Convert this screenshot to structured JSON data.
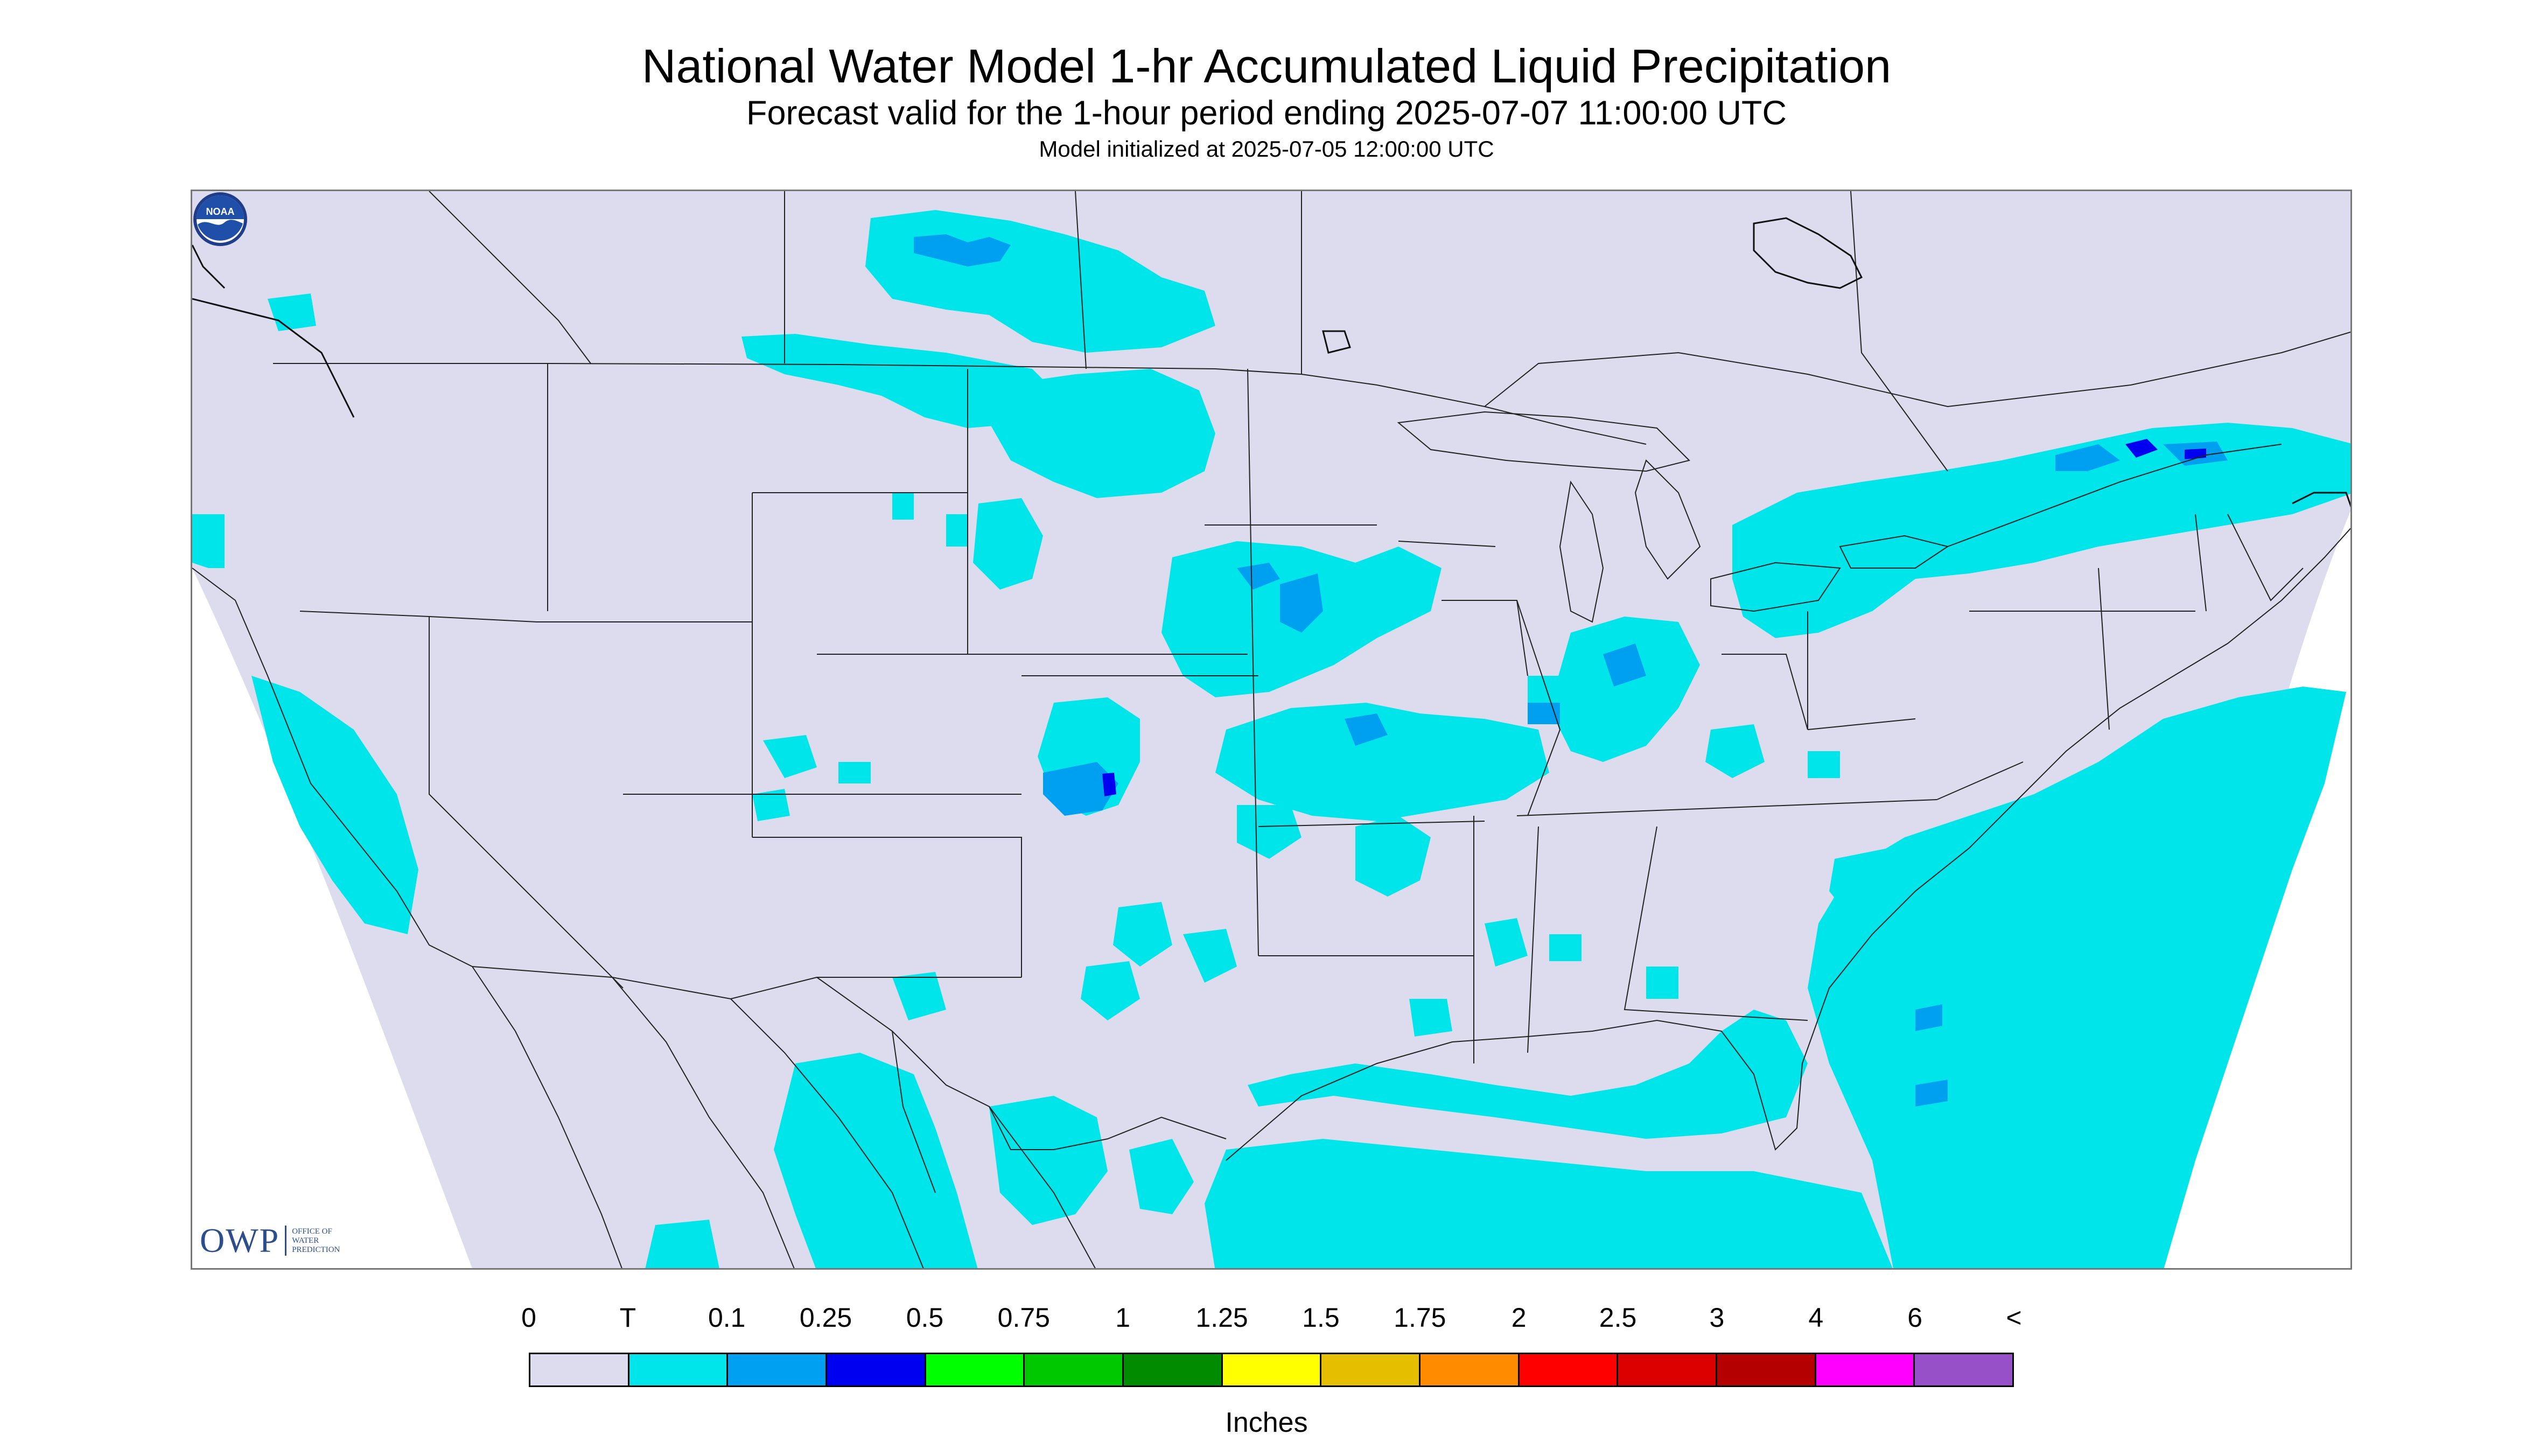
{
  "title": "National Water Model 1-hr Accumulated Liquid Precipitation",
  "subtitle": "Forecast valid for the 1-hour period ending 2025-07-07 11:00:00 UTC",
  "init_line": "Model initialized at 2025-07-05 12:00:00 UTC",
  "logos": {
    "owp_abbr": "OWP",
    "owp_full": "OFFICE OF WATER PREDICTION",
    "noaa_text": "NOAA"
  },
  "legend": {
    "units": "Inches",
    "ticks": [
      "0",
      "T",
      "0.1",
      "0.25",
      "0.5",
      "0.75",
      "1",
      "1.25",
      "1.5",
      "1.75",
      "2",
      "2.5",
      "3",
      "4",
      "6",
      "<"
    ],
    "colors": [
      "#dcdcee",
      "#00e5ea",
      "#00a0f0",
      "#0000f0",
      "#00ff00",
      "#00c800",
      "#008c00",
      "#ffff00",
      "#e6be00",
      "#ff8c00",
      "#ff0000",
      "#dc0000",
      "#b40000",
      "#ff00ff",
      "#9650c8"
    ]
  },
  "map_colors": {
    "domain_fill": "#dcdcee",
    "outside_fill": "#ffffff",
    "border": "#222222",
    "trace": "#00e5ea",
    "light_blue": "#00a0f0",
    "blue": "#0000f0"
  }
}
